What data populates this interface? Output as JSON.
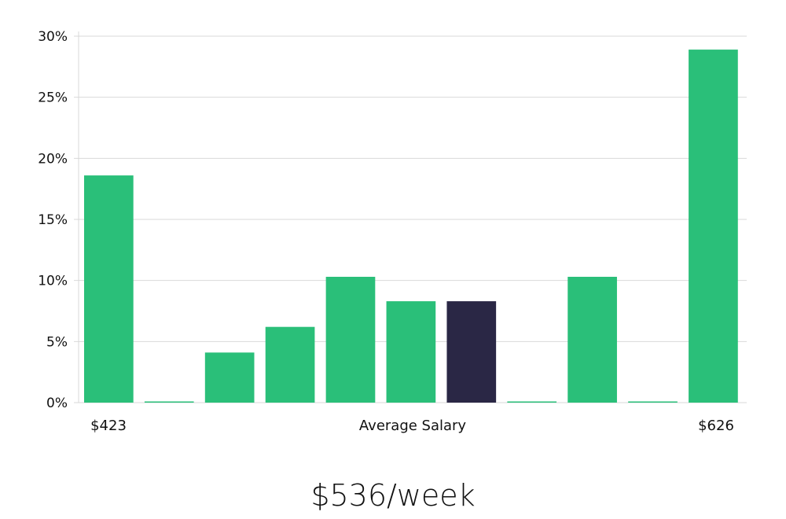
{
  "chart_data": {
    "type": "bar",
    "categories": [
      "1",
      "2",
      "3",
      "4",
      "5",
      "6",
      "7",
      "8",
      "9",
      "10",
      "11"
    ],
    "values": [
      18.6,
      0,
      4.1,
      6.2,
      10.3,
      8.3,
      8.3,
      0,
      10.3,
      0,
      28.9
    ],
    "highlight_index": 6,
    "ylim": [
      0,
      30
    ],
    "yticks": [
      "0%",
      "5%",
      "10%",
      "15%",
      "20%",
      "25%",
      "30%"
    ],
    "x_labels": {
      "left": "$423",
      "center": "Average Salary",
      "right": "$626"
    },
    "grid": true,
    "colors": {
      "bar": "#2abf79",
      "highlight": "#2a2745",
      "grid": "#d9d9d9"
    }
  },
  "summary": {
    "salary": "$536/week"
  }
}
